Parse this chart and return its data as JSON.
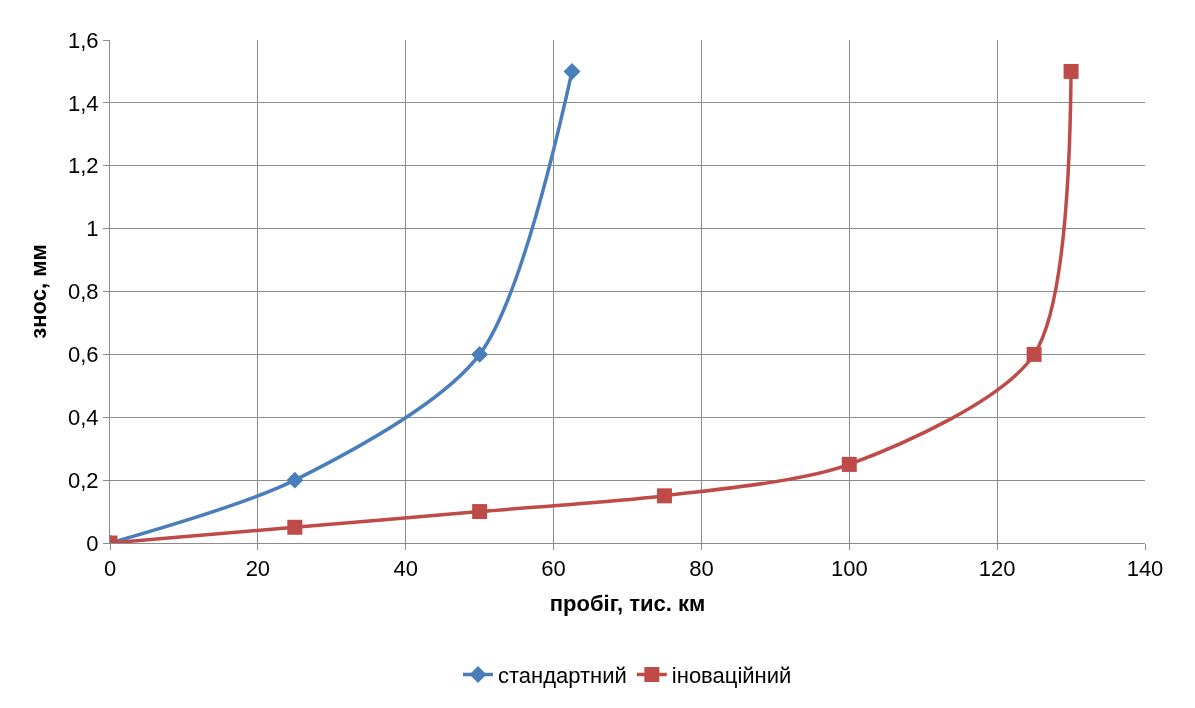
{
  "chart_data": {
    "type": "line",
    "xlabel": "пробіг, тис. км",
    "ylabel": "знос, мм",
    "xlim": [
      0,
      140
    ],
    "xticks": [
      0,
      20,
      40,
      60,
      80,
      100,
      120,
      140
    ],
    "ylim": [
      0,
      1.6
    ],
    "yticks": [
      0,
      {
        "value": 0.2,
        "label": "0,2"
      },
      {
        "value": 0.4,
        "label": "0,4"
      },
      {
        "value": 0.6,
        "label": "0,6"
      },
      {
        "value": 0.8,
        "label": "0,8"
      },
      1,
      {
        "value": 1.2,
        "label": "1,2"
      },
      {
        "value": 1.4,
        "label": "1,4"
      },
      {
        "value": 1.6,
        "label": "1,6"
      }
    ],
    "grid": true,
    "legend": "bottom",
    "line_style": "solid",
    "series": [
      {
        "name": "стандартний",
        "color": "#4a7ebb",
        "marker": "diamond",
        "x": [
          0,
          25,
          50,
          62.5
        ],
        "values": [
          0,
          0.2,
          0.6,
          1.5
        ]
      },
      {
        "name": "іноваційний",
        "color": "#be4b48",
        "marker": "square",
        "x": [
          0,
          25,
          50,
          75,
          100,
          125,
          130
        ],
        "values": [
          0,
          0.05,
          0.1,
          0.15,
          0.25,
          0.6,
          1.5
        ]
      }
    ]
  }
}
